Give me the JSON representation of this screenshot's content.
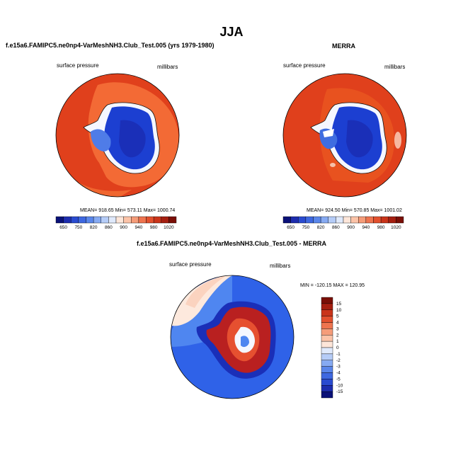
{
  "title": "JJA",
  "palette": {
    "orange_red": "#e0401c",
    "orange_light": "#f36a35",
    "deep_blue": "#1c3fd1",
    "navy": "#1a2fb8",
    "light_blue": "#4f7ce8",
    "white_ice": "#f5f7ff",
    "diff_blue": "#2f62e8",
    "diff_light_blue": "#4f86f0",
    "diff_red": "#b92020",
    "diff_pale": "#fde9dd"
  },
  "panels": [
    {
      "title": "f.e15a6.FAMIPC5.ne0np4-VarMeshNH3.Club_Test.005 (yrs 1979-1980)",
      "left_label": "surface pressure",
      "right_label": "millibars",
      "stats": "MEAN= 918.65   Min= 573.11   Max= 1000.74"
    },
    {
      "title": "MERRA",
      "left_label": "surface pressure",
      "right_label": "millibars",
      "stats": "MEAN= 924.50   Min= 570.85   Max= 1001.02"
    },
    {
      "title": "f.e15a6.FAMIPC5.ne0np4-VarMeshNH3.Club_Test.005 - MERRA",
      "left_label": "surface pressure",
      "right_label": "millibars",
      "stats": "MIN = -120.15  MAX = 120.95"
    }
  ],
  "abs_colorbar": {
    "labels": [
      "650",
      "750",
      "820",
      "860",
      "900",
      "940",
      "980",
      "1020"
    ],
    "colors": [
      "#0a1178",
      "#1d2dae",
      "#2a4bd0",
      "#3e68e0",
      "#5a86ea",
      "#86aaf2",
      "#b5ccf7",
      "#dfe9fb",
      "#fde6d9",
      "#fbc3a8",
      "#f59c79",
      "#ee744f",
      "#e2502e",
      "#c9341a",
      "#a51f10",
      "#7a0f06"
    ]
  },
  "diff_colorbar": {
    "labels": [
      "15",
      "10",
      "5",
      "4",
      "3",
      "2",
      "1",
      "0",
      "-1",
      "-2",
      "-3",
      "-4",
      "-5",
      "-10",
      "-15"
    ],
    "colors": [
      "#7a0f06",
      "#a51f10",
      "#c9341a",
      "#e2502e",
      "#ee744f",
      "#f59c79",
      "#fbc3a8",
      "#fde6d9",
      "#dfe9fb",
      "#b5ccf7",
      "#86aaf2",
      "#5a86ea",
      "#3e68e0",
      "#2a4bd0",
      "#1d2dae",
      "#0a1178"
    ]
  }
}
